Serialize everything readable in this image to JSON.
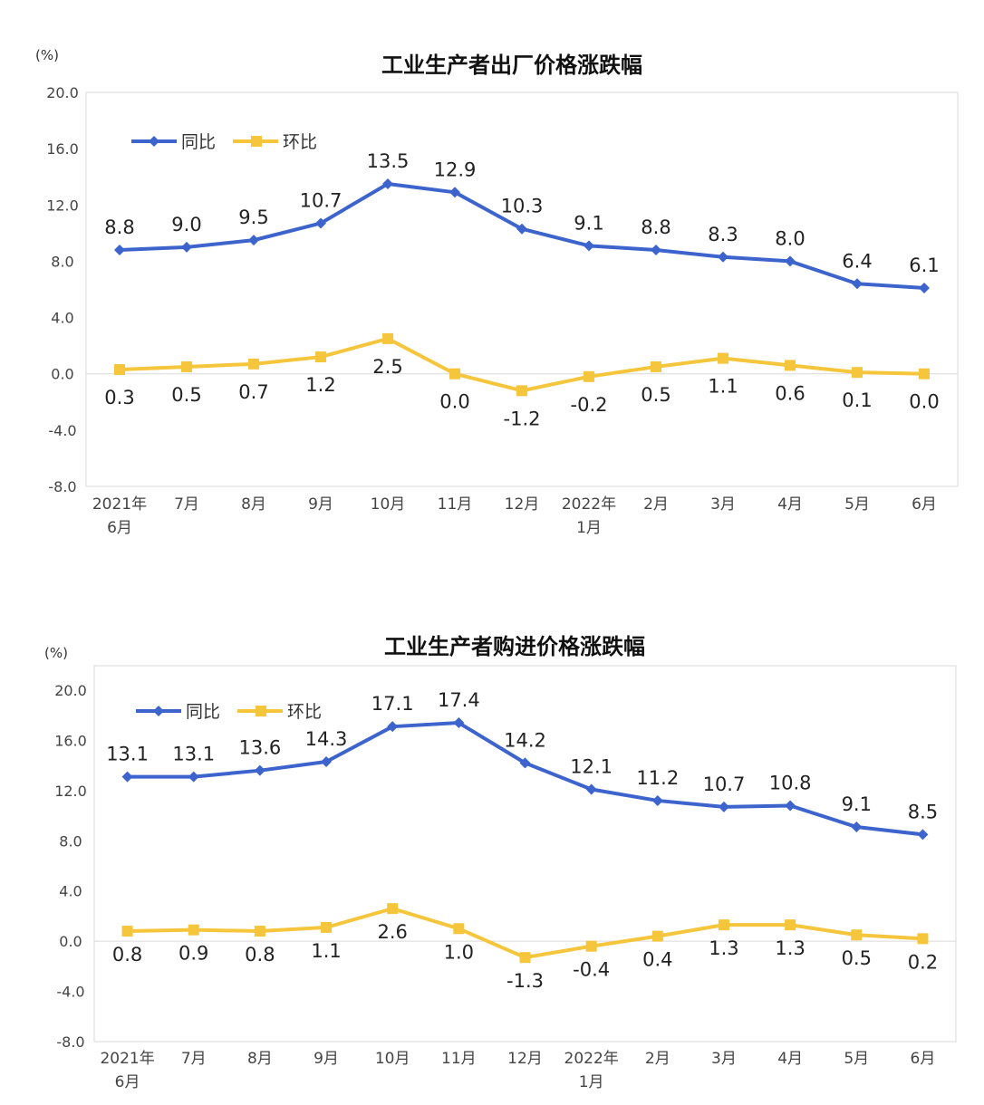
{
  "chart_data": [
    {
      "type": "line",
      "title": "工业生产者出厂价格涨跌幅",
      "ylabel": "(%)",
      "ylim": [
        -8.0,
        20.0
      ],
      "yticks": [
        "20.0",
        "16.0",
        "12.0",
        "8.0",
        "4.0",
        "0.0",
        "-4.0",
        "-8.0"
      ],
      "categories": [
        [
          "2021年",
          "6月"
        ],
        [
          "7月"
        ],
        [
          "8月"
        ],
        [
          "9月"
        ],
        [
          "10月"
        ],
        [
          "11月"
        ],
        [
          "12月"
        ],
        [
          "2022年",
          "1月"
        ],
        [
          "2月"
        ],
        [
          "3月"
        ],
        [
          "4月"
        ],
        [
          "5月"
        ],
        [
          "6月"
        ]
      ],
      "legend_position": "top-left",
      "series": [
        {
          "name": "同比",
          "color": "#3c64cc",
          "values": [
            8.8,
            9.0,
            9.5,
            10.7,
            13.5,
            12.9,
            10.3,
            9.1,
            8.8,
            8.3,
            8.0,
            6.4,
            6.1
          ]
        },
        {
          "name": "环比",
          "color": "#f5c53b",
          "values": [
            0.3,
            0.5,
            0.7,
            1.2,
            2.5,
            0.0,
            -1.2,
            -0.2,
            0.5,
            1.1,
            0.6,
            0.1,
            0.0
          ]
        }
      ]
    },
    {
      "type": "line",
      "title": "工业生产者购进价格涨跌幅",
      "ylabel": "(%)",
      "ylim": [
        -8.0,
        20.0
      ],
      "yticks": [
        "20.0",
        "16.0",
        "12.0",
        "8.0",
        "4.0",
        "0.0",
        "-4.0",
        "-8.0"
      ],
      "categories": [
        [
          "2021年",
          "6月"
        ],
        [
          "7月"
        ],
        [
          "8月"
        ],
        [
          "9月"
        ],
        [
          "10月"
        ],
        [
          "11月"
        ],
        [
          "12月"
        ],
        [
          "2022年",
          "1月"
        ],
        [
          "2月"
        ],
        [
          "3月"
        ],
        [
          "4月"
        ],
        [
          "5月"
        ],
        [
          "6月"
        ]
      ],
      "legend_position": "top-left",
      "series": [
        {
          "name": "同比",
          "color": "#3c64cc",
          "values": [
            13.1,
            13.1,
            13.6,
            14.3,
            17.1,
            17.4,
            14.2,
            12.1,
            11.2,
            10.7,
            10.8,
            9.1,
            8.5
          ]
        },
        {
          "name": "环比",
          "color": "#f5c53b",
          "values": [
            0.8,
            0.9,
            0.8,
            1.1,
            2.6,
            1.0,
            -1.3,
            -0.4,
            0.4,
            1.3,
            1.3,
            0.5,
            0.2
          ]
        }
      ]
    }
  ]
}
